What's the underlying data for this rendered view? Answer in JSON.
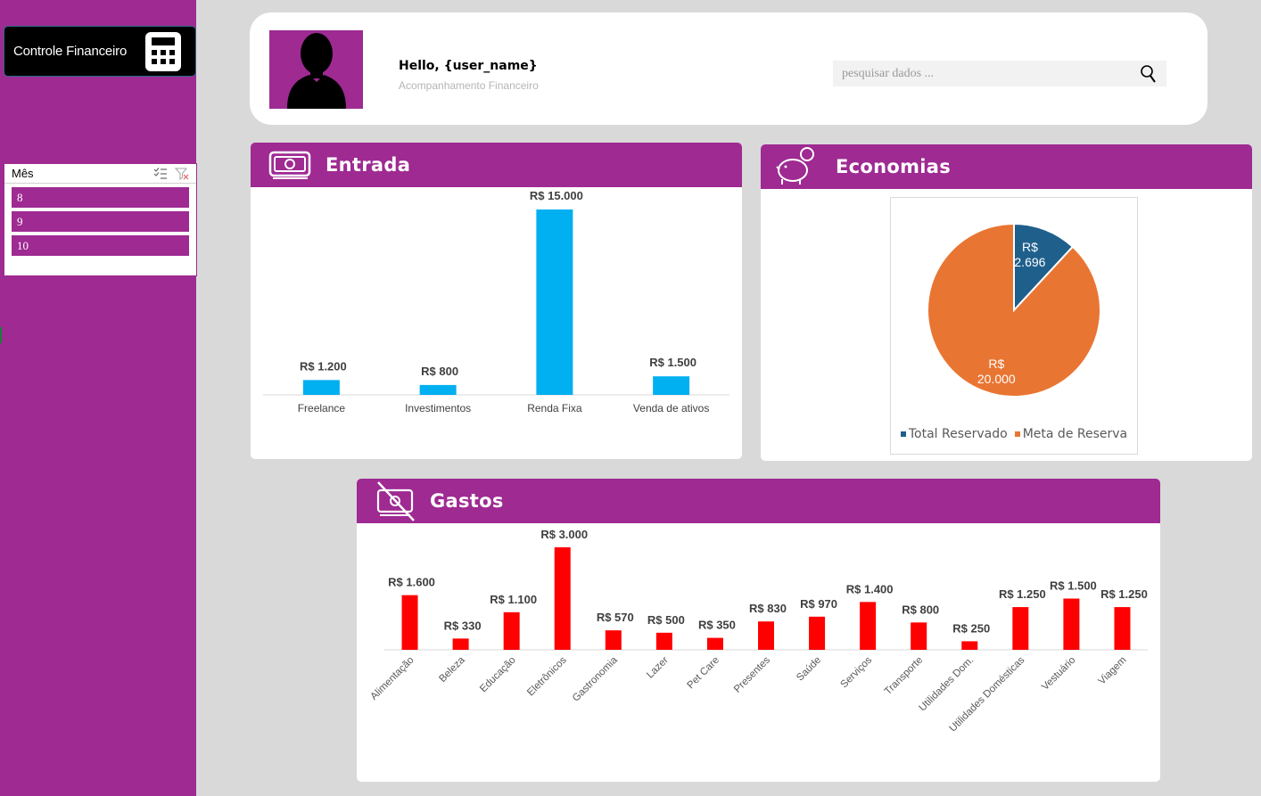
{
  "app": {
    "title": "Controle Financeiro"
  },
  "slicer": {
    "title": "Mês",
    "items": [
      "8",
      "9",
      "10"
    ]
  },
  "header": {
    "greeting": "Hello, {user_name}",
    "subtitle": "Acompanhamento Financeiro",
    "search_placeholder": "pesquisar dados ..."
  },
  "panels": {
    "entrada": "Entrada",
    "economias": "Economias",
    "gastos": "Gastos"
  },
  "colors": {
    "brand": "#9e2a92",
    "entrada_bar": "#00b0f0",
    "gastos_bar": "#ff0000",
    "pie_reserved": "#1f5f8b",
    "pie_goal": "#e97532"
  },
  "chart_data": [
    {
      "type": "bar",
      "title": "",
      "categories": [
        "Freelance",
        "Investimentos",
        "Renda Fixa",
        "Venda de ativos"
      ],
      "values": [
        1200,
        800,
        15000,
        1500
      ],
      "labels": [
        "R$ 1.200",
        "R$ 800",
        "R$ 15.000",
        "R$ 1.500"
      ],
      "grid": false
    },
    {
      "type": "pie",
      "categories": [
        "Total Reservado",
        "Meta de Reserva"
      ],
      "values": [
        2696,
        20000
      ],
      "labels_line1": [
        "R$",
        "R$"
      ],
      "labels_line2": [
        "2.696",
        "20.000"
      ],
      "legend": "bottom"
    },
    {
      "type": "bar",
      "title": "",
      "categories": [
        "Alimentação",
        "Beleza",
        "Educação",
        "Eletrônicos",
        "Gastronomia",
        "Lazer",
        "Pet Care",
        "Presentes",
        "Saúde",
        "Serviços",
        "Transporte",
        "Utilidades Dom.",
        "Utilidades Domésticas",
        "Vestuário",
        "Viagem"
      ],
      "values": [
        1600,
        330,
        1100,
        3000,
        570,
        500,
        350,
        830,
        970,
        1400,
        800,
        250,
        1250,
        1500,
        1250
      ],
      "labels": [
        "R$ 1.600",
        "R$ 330",
        "R$ 1.100",
        "R$ 3.000",
        "R$ 570",
        "R$ 500",
        "R$ 350",
        "R$ 830",
        "R$ 970",
        "R$ 1.400",
        "R$ 800",
        "R$ 250",
        "R$ 1.250",
        "R$ 1.500",
        "R$ 1.250"
      ],
      "grid": false
    }
  ]
}
